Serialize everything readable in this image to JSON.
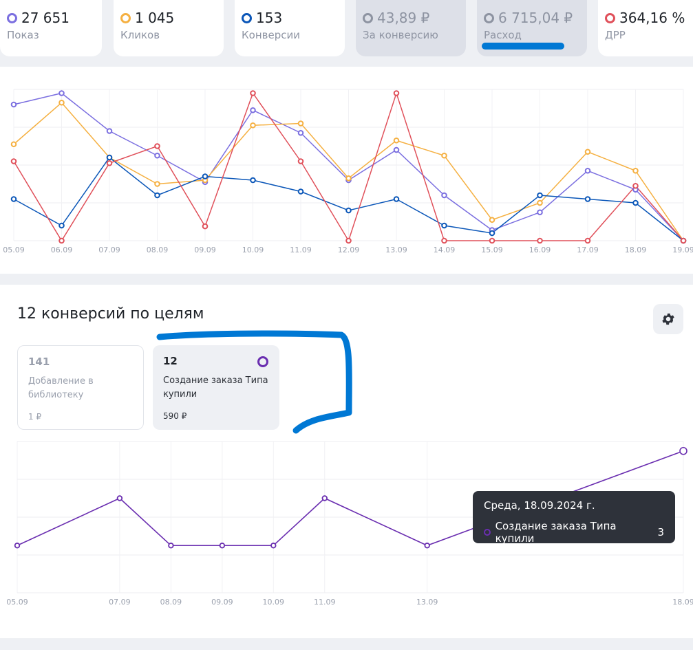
{
  "metrics": [
    {
      "value": "27 651",
      "label": "Показ",
      "color": "#7b6fe0",
      "muted": false
    },
    {
      "value": "1 045",
      "label": "Кликов",
      "color": "#f5b041",
      "muted": false
    },
    {
      "value": "153",
      "label": "Конверсии",
      "color": "#0a56b8",
      "muted": false
    },
    {
      "value": "43,89 ₽",
      "label": "За конверсию",
      "color": "#8d93a1",
      "muted": true
    },
    {
      "value": "6 715,04 ₽",
      "label": "Расход",
      "color": "#8d93a1",
      "muted": true
    },
    {
      "value": "364,16 %",
      "label": "ДРР",
      "color": "#e0505a",
      "muted": false
    }
  ],
  "chart_data": [
    {
      "type": "line",
      "x": [
        "05.09",
        "06.09",
        "07.09",
        "08.09",
        "09.09",
        "10.09",
        "11.09",
        "12.09",
        "13.09",
        "14.09",
        "15.09",
        "16.09",
        "17.09",
        "18.09",
        "19.09"
      ],
      "ylim": [
        0,
        4
      ],
      "grid": true,
      "series": [
        {
          "color": "#7b6fe0",
          "values": [
            3.6,
            3.9,
            2.9,
            2.25,
            1.55,
            3.45,
            2.85,
            1.6,
            2.4,
            1.2,
            0.28,
            0.75,
            1.85,
            1.35,
            0.0
          ]
        },
        {
          "color": "#f5b041",
          "values": [
            2.55,
            3.65,
            2.2,
            1.5,
            1.6,
            3.05,
            3.1,
            1.65,
            2.65,
            2.25,
            0.55,
            1.0,
            2.35,
            1.85,
            0.0
          ]
        },
        {
          "color": "#0a56b8",
          "values": [
            1.1,
            0.4,
            2.2,
            1.2,
            1.7,
            1.6,
            1.3,
            0.8,
            1.1,
            0.4,
            0.2,
            1.2,
            1.1,
            1.0,
            0.0
          ]
        },
        {
          "color": "#e0505a",
          "values": [
            2.1,
            0.0,
            2.05,
            2.5,
            0.38,
            3.9,
            2.1,
            0.0,
            3.9,
            0.0,
            0.0,
            0.0,
            0.0,
            1.45,
            0.0
          ]
        }
      ]
    },
    {
      "type": "line",
      "x": [
        "05.09",
        "07.09",
        "08.09",
        "09.09",
        "10.09",
        "11.09",
        "13.09",
        "18.09"
      ],
      "ylim": [
        0,
        4
      ],
      "grid": true,
      "series": [
        {
          "name": "Создание заказа Типа купили",
          "color": "#6a2eb0",
          "values": [
            1.25,
            2.5,
            1.25,
            1.25,
            1.25,
            2.5,
            1.25,
            3.75
          ]
        }
      ]
    }
  ],
  "goals": {
    "title": "12 конверсий по целям",
    "cards": [
      {
        "count": "141",
        "name": "Добавление в библиотеку",
        "price": "1 ₽"
      },
      {
        "count": "12",
        "name": "Создание заказа Типа купили",
        "price": "590 ₽"
      }
    ]
  },
  "tooltip": {
    "date": "Среда, 18.09.2024 г.",
    "series_name": "Создание заказа Типа купили",
    "value": "3"
  },
  "icons": {
    "settings": "gear-icon"
  }
}
